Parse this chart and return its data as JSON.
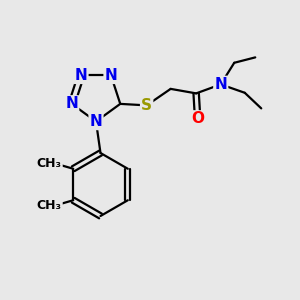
{
  "background_color": "#e8e8e8",
  "atom_colors": {
    "N": "#0000ee",
    "S": "#999900",
    "O": "#ff0000",
    "C": "#000000"
  },
  "bond_color": "#000000",
  "bond_width": 1.6,
  "font_size_atoms": 11,
  "font_size_methyl": 9,
  "figsize": [
    3.0,
    3.0
  ],
  "dpi": 100
}
